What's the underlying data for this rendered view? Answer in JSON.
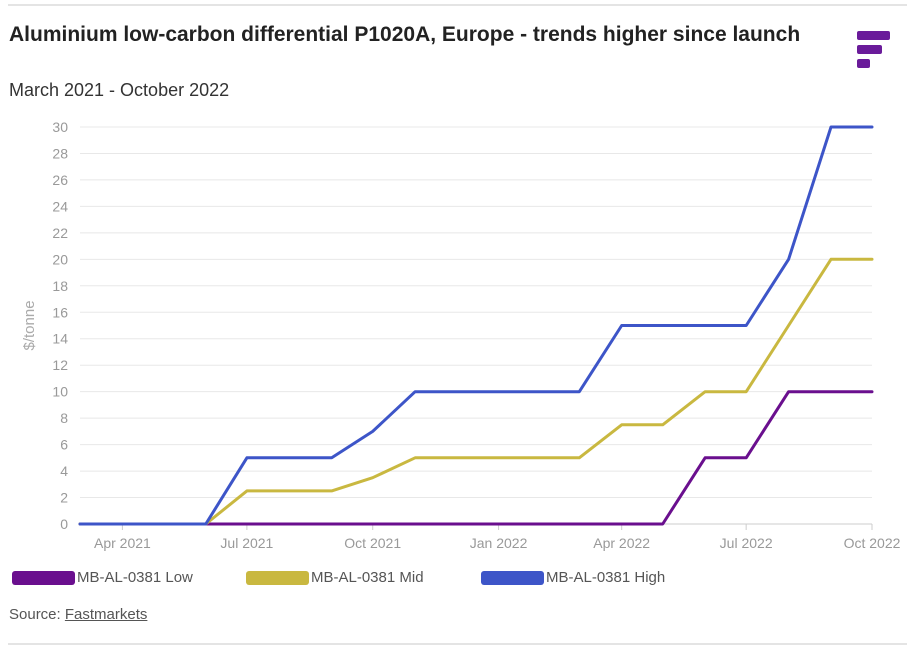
{
  "title": "Aluminium low-carbon differential P1020A, Europe - trends higher since launch",
  "subtitle": "March 2021 - October 2022",
  "source_prefix": "Source: ",
  "source_link": "Fastmarkets",
  "logo_icon": "fastmarkets-logo-icon",
  "chart_data": {
    "type": "line",
    "title": "Aluminium low-carbon differential P1020A, Europe - trends higher since launch",
    "subtitle": "March 2021 - October 2022",
    "ylabel": "$/tonne",
    "xlabel": "",
    "ylim": [
      0,
      30
    ],
    "yticks": [
      0,
      2,
      4,
      6,
      8,
      10,
      12,
      14,
      16,
      18,
      20,
      22,
      24,
      26,
      28,
      30
    ],
    "xlim": [
      "2021-03-01",
      "2022-10-01"
    ],
    "xticks": [
      {
        "date": "2021-04-01",
        "label": "Apr 2021"
      },
      {
        "date": "2021-07-01",
        "label": "Jul 2021"
      },
      {
        "date": "2021-10-01",
        "label": "Oct 2021"
      },
      {
        "date": "2022-01-01",
        "label": "Jan 2022"
      },
      {
        "date": "2022-04-01",
        "label": "Apr 2022"
      },
      {
        "date": "2022-07-01",
        "label": "Jul 2022"
      },
      {
        "date": "2022-10-01",
        "label": "Oct 2022"
      }
    ],
    "grid": true,
    "legend_position": "bottom",
    "series": [
      {
        "name": "MB-AL-0381 Low",
        "color": "#6a0f8e",
        "points": [
          [
            "2021-03-01",
            0
          ],
          [
            "2021-06-01",
            0
          ],
          [
            "2021-07-01",
            0
          ],
          [
            "2021-09-01",
            0
          ],
          [
            "2021-10-01",
            0
          ],
          [
            "2021-11-01",
            0
          ],
          [
            "2022-02-01",
            0
          ],
          [
            "2022-03-01",
            0
          ],
          [
            "2022-04-01",
            0
          ],
          [
            "2022-05-01",
            0
          ],
          [
            "2022-06-01",
            5
          ],
          [
            "2022-07-01",
            5
          ],
          [
            "2022-08-01",
            10
          ],
          [
            "2022-09-01",
            10
          ],
          [
            "2022-10-01",
            10
          ]
        ]
      },
      {
        "name": "MB-AL-0381 Mid",
        "color": "#c9b840",
        "points": [
          [
            "2021-03-01",
            0
          ],
          [
            "2021-06-01",
            0
          ],
          [
            "2021-07-01",
            2.5
          ],
          [
            "2021-09-01",
            2.5
          ],
          [
            "2021-10-01",
            3.5
          ],
          [
            "2021-11-01",
            5
          ],
          [
            "2022-02-01",
            5
          ],
          [
            "2022-03-01",
            5
          ],
          [
            "2022-04-01",
            7.5
          ],
          [
            "2022-05-01",
            7.5
          ],
          [
            "2022-06-01",
            10
          ],
          [
            "2022-07-01",
            10
          ],
          [
            "2022-08-01",
            15
          ],
          [
            "2022-09-01",
            20
          ],
          [
            "2022-10-01",
            20
          ]
        ]
      },
      {
        "name": "MB-AL-0381 High",
        "color": "#3d55c8",
        "points": [
          [
            "2021-03-01",
            0
          ],
          [
            "2021-06-01",
            0
          ],
          [
            "2021-07-01",
            5
          ],
          [
            "2021-09-01",
            5
          ],
          [
            "2021-10-01",
            7
          ],
          [
            "2021-11-01",
            10
          ],
          [
            "2022-02-01",
            10
          ],
          [
            "2022-03-01",
            10
          ],
          [
            "2022-04-01",
            15
          ],
          [
            "2022-05-01",
            15
          ],
          [
            "2022-06-01",
            15
          ],
          [
            "2022-07-01",
            15
          ],
          [
            "2022-08-01",
            20
          ],
          [
            "2022-09-01",
            30
          ],
          [
            "2022-10-01",
            30
          ]
        ]
      }
    ]
  }
}
